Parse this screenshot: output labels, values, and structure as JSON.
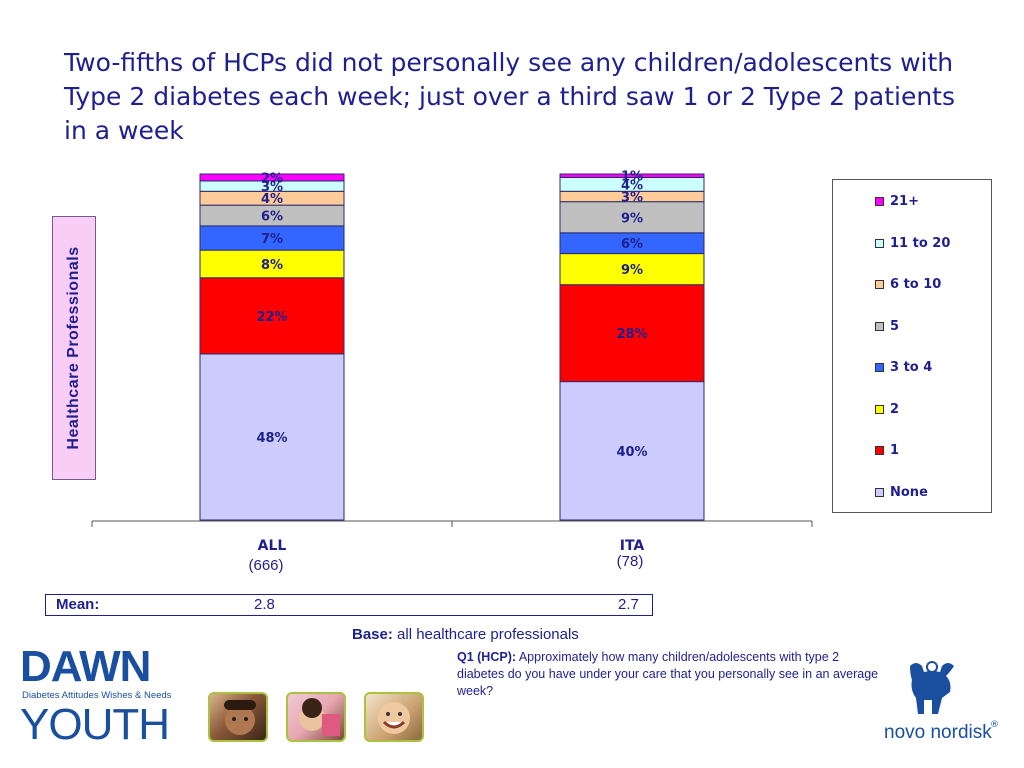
{
  "title": "Two-fifths of HCPs did not personally see any children/adolescents with Type 2 diabetes each week; just over a third saw 1 or 2 Type 2 patients in a week",
  "side_label": "Healthcare  Professionals",
  "chart_data": {
    "type": "bar",
    "stacked": true,
    "percent_stacked": true,
    "ylim": [
      0,
      100
    ],
    "categories": [
      "ALL",
      "ITA"
    ],
    "category_bases": [
      "(666)",
      "(78)"
    ],
    "series": [
      {
        "name": "None",
        "values": [
          48,
          40
        ],
        "labels": [
          "48%",
          "40%"
        ],
        "color": "#ccccff"
      },
      {
        "name": "1",
        "values": [
          22,
          28
        ],
        "labels": [
          "22%",
          "28%"
        ],
        "color": "#ff0000"
      },
      {
        "name": "2",
        "values": [
          8,
          9
        ],
        "labels": [
          "8%",
          "9%"
        ],
        "color": "#ffff00"
      },
      {
        "name": "3 to 4",
        "values": [
          7,
          6
        ],
        "labels": [
          "7%",
          "6%"
        ],
        "color": "#3366ff"
      },
      {
        "name": "5",
        "values": [
          6,
          9
        ],
        "labels": [
          "6%",
          "9%"
        ],
        "color": "#c0c0c0"
      },
      {
        "name": "6 to 10",
        "values": [
          4,
          3
        ],
        "labels": [
          "4%",
          "3%"
        ],
        "color": "#ffcc99"
      },
      {
        "name": "11 to 20",
        "values": [
          3,
          4
        ],
        "labels": [
          "3%",
          "4%"
        ],
        "color": "#ccffff"
      },
      {
        "name": "21+",
        "values": [
          2,
          1
        ],
        "labels": [
          "2%",
          "1%"
        ],
        "color": "#ff00ff"
      }
    ],
    "legend_position": "right",
    "grid": false
  },
  "legend_order": [
    "21+",
    "11 to 20",
    "6 to 10",
    "5",
    "3 to 4",
    "2",
    "1",
    "None"
  ],
  "mean": {
    "label": "Mean:",
    "values": [
      "2.8",
      "2.7"
    ]
  },
  "base": {
    "label": "Base:",
    "text": "all healthcare professionals"
  },
  "question": {
    "label": "Q1 (HCP):",
    "text": "Approximately how many children/adolescents with type 2 diabetes do you have under your care that you personally see in an average week?"
  },
  "logos": {
    "dawn_word": "DAWN",
    "dawn_tagline": "Diabetes Attitudes Wishes & Needs",
    "youth_word": "YOUTH",
    "novo_nordisk": "novo nordisk",
    "registered": "®"
  },
  "colors": {
    "text": "#1f1f8f",
    "logo_blue": "#1a4fa0",
    "photo_border": "#a9c23f"
  }
}
